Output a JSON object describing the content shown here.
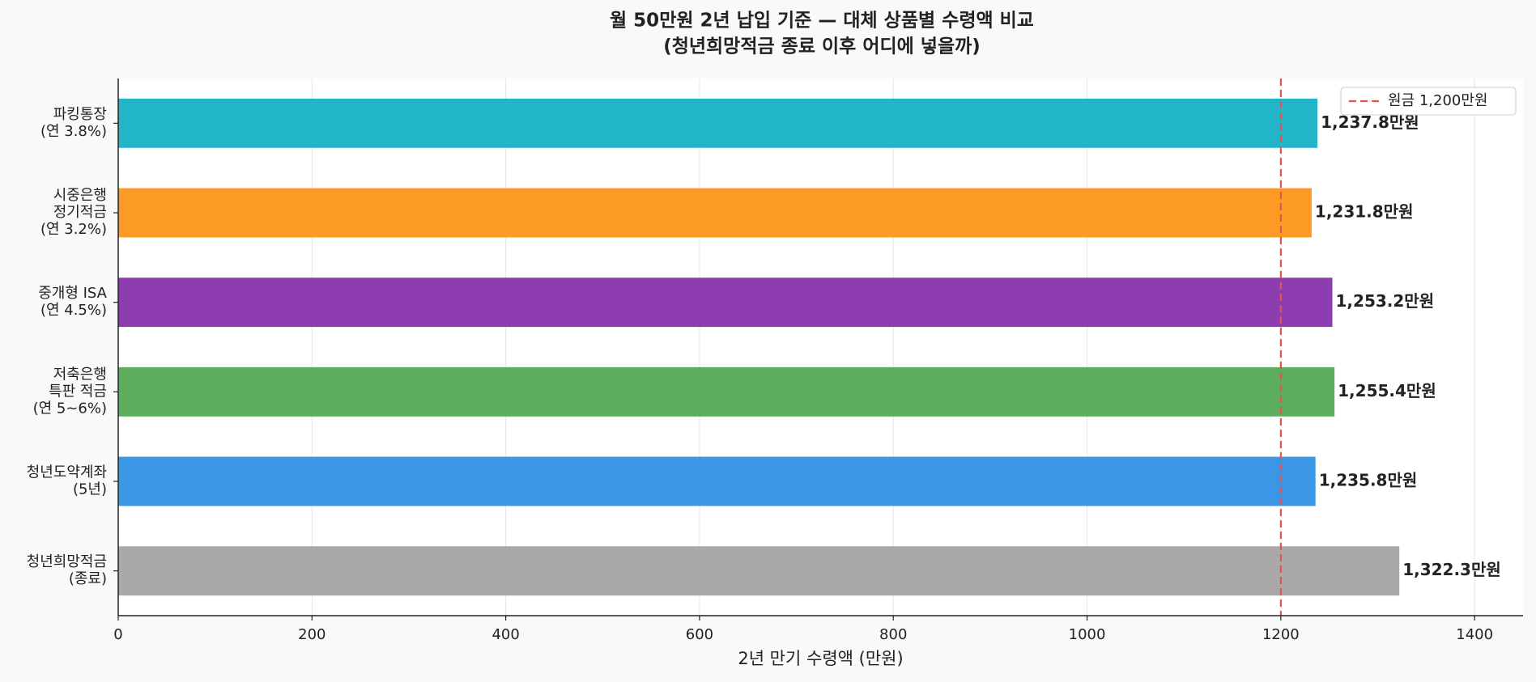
{
  "chart_data": {
    "type": "barh",
    "title": [
      "월 50만원 2년 납입 기준 — 대체 상품별 수령액 비교",
      "(청년희망적금 종료 이후 어디에 넣을까)"
    ],
    "xlabel": "2년 만기 수령액 (만원)",
    "categories": [
      [
        "파킹통장",
        "(연 3.8%)"
      ],
      [
        "시중은행",
        "정기적금",
        "(연 3.2%)"
      ],
      [
        "중개형 ISA",
        "(연 4.5%)"
      ],
      [
        "저축은행",
        "특판 적금",
        "(연 5~6%)"
      ],
      [
        "청년도약계좌",
        "(5년)"
      ],
      [
        "청년희망적금",
        "(종료)"
      ]
    ],
    "values": [
      1237.8,
      1231.8,
      1253.2,
      1255.4,
      1235.8,
      1322.3
    ],
    "value_labels": [
      "1,237.8만원",
      "1,231.8만원",
      "1,253.2만원",
      "1,255.4만원",
      "1,235.8만원",
      "1,322.3만원"
    ],
    "colors": [
      "#22b5c9",
      "#fd9a25",
      "#8e3db0",
      "#5cad5e",
      "#3b97e6",
      "#a9a9a9"
    ],
    "reference_line": {
      "value": 1200,
      "label": "원금 1,200만원",
      "color": "#e05555"
    },
    "xlim": [
      0,
      1450
    ],
    "xticks": [
      0,
      200,
      400,
      600,
      800,
      1000,
      1200,
      1400
    ],
    "grid": true,
    "legend": "upper right"
  }
}
